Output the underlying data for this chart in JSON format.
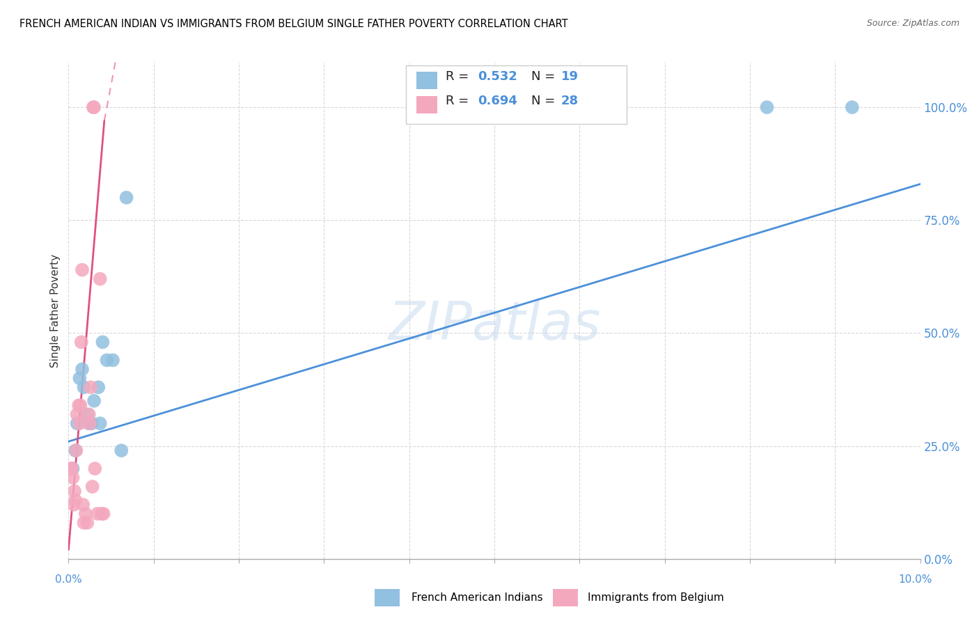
{
  "title": "FRENCH AMERICAN INDIAN VS IMMIGRANTS FROM BELGIUM SINGLE FATHER POVERTY CORRELATION CHART",
  "source": "Source: ZipAtlas.com",
  "ylabel": "Single Father Poverty",
  "legend_blue_label": "French American Indians",
  "legend_pink_label": "Immigrants from Belgium",
  "R_blue": 0.532,
  "N_blue": 19,
  "R_pink": 0.694,
  "N_pink": 28,
  "blue_color": "#92c0e0",
  "pink_color": "#f4a8be",
  "blue_line_color": "#4a90d9",
  "pink_line_color": "#e05080",
  "watermark": "ZIPatlas",
  "blue_points_x": [
    0.05,
    0.08,
    0.1,
    0.13,
    0.16,
    0.18,
    0.22,
    0.24,
    0.27,
    0.3,
    0.35,
    0.37,
    0.4,
    0.45,
    0.52,
    0.62,
    0.68,
    8.2,
    9.2
  ],
  "blue_points_y": [
    20,
    24,
    30,
    40,
    42,
    38,
    32,
    30,
    30,
    35,
    38,
    30,
    48,
    44,
    44,
    24,
    80,
    100,
    100
  ],
  "pink_points_x": [
    0.02,
    0.04,
    0.05,
    0.06,
    0.07,
    0.08,
    0.09,
    0.1,
    0.12,
    0.13,
    0.14,
    0.15,
    0.16,
    0.17,
    0.18,
    0.2,
    0.22,
    0.24,
    0.25,
    0.26,
    0.28,
    0.29,
    0.3,
    0.31,
    0.34,
    0.37,
    0.39,
    0.41
  ],
  "pink_points_y": [
    20,
    20,
    18,
    12,
    15,
    13,
    24,
    32,
    34,
    30,
    34,
    48,
    64,
    12,
    8,
    10,
    8,
    32,
    30,
    38,
    16,
    100,
    100,
    20,
    10,
    62,
    10,
    10
  ],
  "xlim": [
    0,
    10.0
  ],
  "ylim": [
    0,
    110
  ],
  "blue_line_x0": 0.0,
  "blue_line_x1": 10.0,
  "blue_line_y0": 26,
  "blue_line_y1": 83,
  "pink_solid_x0": 0.0,
  "pink_solid_x1": 0.42,
  "pink_solid_y0": 2,
  "pink_solid_y1": 97,
  "pink_dash_x0": 0.42,
  "pink_dash_x1": 0.55,
  "pink_dash_y0": 97,
  "pink_dash_y1": 110,
  "yticks": [
    0,
    25,
    50,
    75,
    100
  ],
  "xticks": [
    0,
    1,
    2,
    3,
    4,
    5,
    6,
    7,
    8,
    9,
    10
  ]
}
